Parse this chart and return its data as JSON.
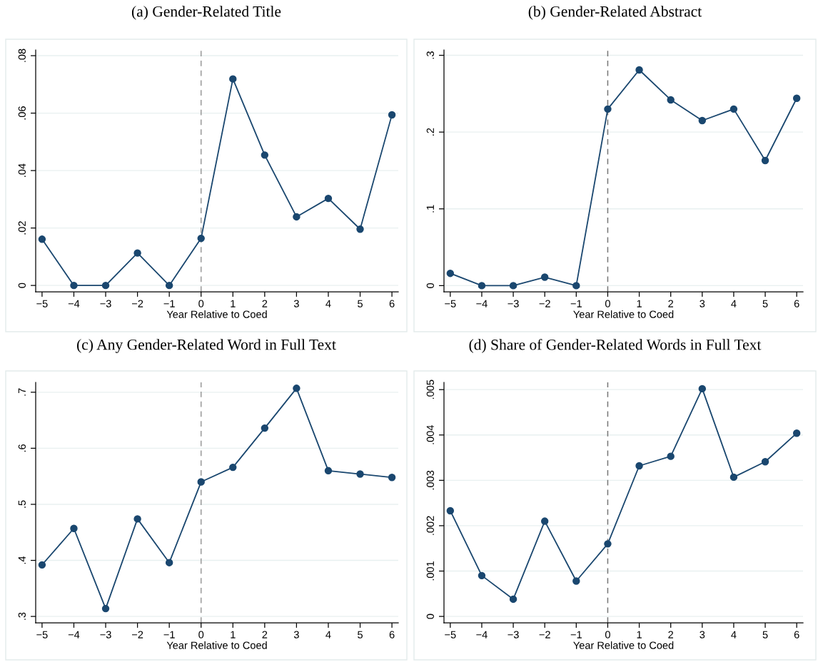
{
  "chart_data": [
    {
      "type": "line",
      "title": "(a) Gender-Related Title",
      "xlabel": "Year Relative to Coed",
      "x": [
        -5,
        -4,
        -3,
        -2,
        -1,
        0,
        1,
        2,
        3,
        4,
        5,
        6
      ],
      "series": [
        {
          "color": "#1a476f",
          "values": [
            0.0161,
            0,
            0,
            0.0113,
            0,
            0.0164,
            0.0719,
            0.0454,
            0.0239,
            0.0303,
            0.0196,
            0.0594
          ]
        }
      ],
      "xlim": [
        -5.2,
        6.2
      ],
      "ylim": [
        -0.0022,
        0.082
      ],
      "xticks": [
        {
          "value": -5,
          "label": "−5"
        },
        {
          "value": -4,
          "label": "−4"
        },
        {
          "value": -3,
          "label": "−3"
        },
        {
          "value": -2,
          "label": "−2"
        },
        {
          "value": -1,
          "label": "−1"
        },
        0,
        1,
        2,
        3,
        4,
        5,
        6
      ],
      "yticks": [
        0,
        {
          "value": 0.02,
          "label": ".02"
        },
        {
          "value": 0.04,
          "label": ".04"
        },
        {
          "value": 0.06,
          "label": ".06"
        },
        {
          "value": 0.08,
          "label": ".08"
        }
      ],
      "ref_lines": [
        {
          "axis": "x",
          "value": 0,
          "color": "#999999",
          "line_style": "dashed"
        }
      ],
      "grid": "y",
      "marker": "circle",
      "line_style": "solid"
    },
    {
      "type": "line",
      "title": "(b) Gender-Related Abstract",
      "xlabel": "Year Relative to Coed",
      "x": [
        -5,
        -4,
        -3,
        -2,
        -1,
        0,
        1,
        2,
        3,
        4,
        5,
        6
      ],
      "series": [
        {
          "color": "#1a476f",
          "values": [
            0.016,
            0,
            0,
            0.011,
            0,
            0.23,
            0.281,
            0.242,
            0.215,
            0.23,
            0.163,
            0.244
          ]
        }
      ],
      "xlim": [
        -5.2,
        6.2
      ],
      "ylim": [
        -0.008,
        0.307
      ],
      "xticks": [
        {
          "value": -5,
          "label": "−5"
        },
        {
          "value": -4,
          "label": "−4"
        },
        {
          "value": -3,
          "label": "−3"
        },
        {
          "value": -2,
          "label": "−2"
        },
        {
          "value": -1,
          "label": "−1"
        },
        0,
        1,
        2,
        3,
        4,
        5,
        6
      ],
      "yticks": [
        0,
        {
          "value": 0.1,
          "label": ".1"
        },
        {
          "value": 0.2,
          "label": ".2"
        },
        {
          "value": 0.3,
          "label": ".3"
        }
      ],
      "ref_lines": [
        {
          "axis": "x",
          "value": 0,
          "color": "#777777",
          "line_style": "dashed"
        }
      ],
      "grid": "y",
      "marker": "circle",
      "line_style": "solid"
    },
    {
      "type": "line",
      "title": "(c) Any Gender-Related Word in Full Text",
      "xlabel": "Year Relative to Coed",
      "x": [
        -5,
        -4,
        -3,
        -2,
        -1,
        0,
        1,
        2,
        3,
        4,
        5,
        6
      ],
      "series": [
        {
          "color": "#1a476f",
          "values": [
            0.392,
            0.457,
            0.314,
            0.474,
            0.396,
            0.54,
            0.566,
            0.636,
            0.707,
            0.56,
            0.554,
            0.548
          ]
        }
      ],
      "xlim": [
        -5.2,
        6.2
      ],
      "ylim": [
        0.2887,
        0.7176
      ],
      "xticks": [
        {
          "value": -5,
          "label": "−5"
        },
        {
          "value": -4,
          "label": "−4"
        },
        {
          "value": -3,
          "label": "−3"
        },
        {
          "value": -2,
          "label": "−2"
        },
        {
          "value": -1,
          "label": "−1"
        },
        0,
        1,
        2,
        3,
        4,
        5,
        6
      ],
      "yticks": [
        {
          "value": 0.3,
          "label": ".3"
        },
        {
          "value": 0.4,
          "label": ".4"
        },
        {
          "value": 0.5,
          "label": ".5"
        },
        {
          "value": 0.6,
          "label": ".6"
        },
        {
          "value": 0.7,
          "label": ".7"
        }
      ],
      "ref_lines": [
        {
          "axis": "x",
          "value": 0,
          "color": "#999999",
          "line_style": "dashed"
        }
      ],
      "grid": "y",
      "marker": "circle",
      "line_style": "solid"
    },
    {
      "type": "line",
      "title": "(d) Share of Gender-Related Words in Full Text",
      "xlabel": "Year Relative to Coed",
      "x": [
        -5,
        -4,
        -3,
        -2,
        -1,
        0,
        1,
        2,
        3,
        4,
        5,
        6
      ],
      "series": [
        {
          "color": "#1a476f",
          "values": [
            0.00233,
            0.0009,
            0.00038,
            0.0021,
            0.00078,
            0.0016,
            0.00332,
            0.00353,
            0.00502,
            0.00307,
            0.00341,
            0.00404
          ]
        }
      ],
      "xlim": [
        -5.2,
        6.2
      ],
      "ylim": [
        -0.00014,
        0.00516
      ],
      "xticks": [
        {
          "value": -5,
          "label": "−5"
        },
        {
          "value": -4,
          "label": "−4"
        },
        {
          "value": -3,
          "label": "−3"
        },
        {
          "value": -2,
          "label": "−2"
        },
        {
          "value": -1,
          "label": "−1"
        },
        0,
        1,
        2,
        3,
        4,
        5,
        6
      ],
      "yticks": [
        0,
        {
          "value": 0.001,
          "label": ".001"
        },
        {
          "value": 0.002,
          "label": ".002"
        },
        {
          "value": 0.003,
          "label": ".003"
        },
        {
          "value": 0.004,
          "label": ".004"
        },
        {
          "value": 0.005,
          "label": ".005"
        }
      ],
      "ref_lines": [
        {
          "axis": "x",
          "value": 0,
          "color": "#777777",
          "line_style": "dashed"
        }
      ],
      "grid": "y",
      "marker": "circle",
      "line_style": "solid"
    }
  ]
}
